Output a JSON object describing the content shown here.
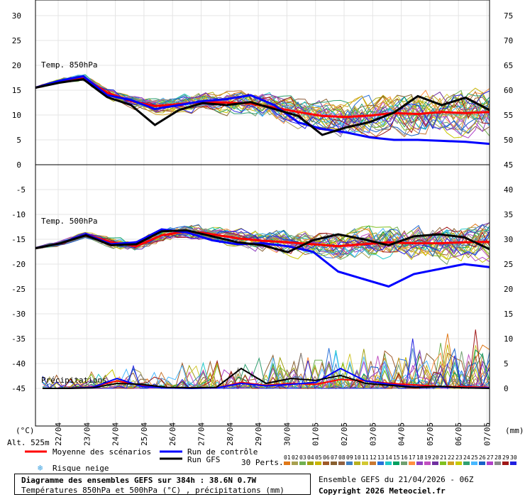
{
  "chart_data": {
    "type": "line",
    "title": "Diagramme des ensembles GEFS sur 384h : 38.6N 0.7W",
    "subtitle": "Températures 850hPa et 500hPa (°C) , précipitations (mm)",
    "x_dates": [
      "22/04",
      "23/04",
      "24/04",
      "25/04",
      "26/04",
      "27/04",
      "28/04",
      "29/04",
      "30/04",
      "01/05",
      "02/05",
      "03/05",
      "04/05",
      "05/05",
      "06/05",
      "07/05"
    ],
    "top_panel": {
      "label": "Temp. 850hPa",
      "left_ticks": [
        "30",
        "25",
        "20",
        "15",
        "10",
        "5",
        "0"
      ],
      "right_ticks": [
        "75",
        "70",
        "65",
        "60",
        "55",
        "50"
      ],
      "ylim": [
        0,
        30
      ],
      "series": [
        {
          "name": "Moyenne des scénarios",
          "color": "#ff0000",
          "values": [
            15.5,
            16.8,
            17.6,
            14.5,
            12.8,
            11.8,
            12.2,
            12.6,
            12.5,
            12.3,
            11.5,
            10.6,
            9.8,
            9.6,
            9.9,
            10.4,
            10.2,
            10.6,
            10.4,
            10.6
          ]
        },
        {
          "name": "Run de contrôle",
          "color": "#0000ff",
          "values": [
            15.5,
            16.9,
            17.8,
            14.0,
            13.0,
            11.2,
            12.0,
            12.8,
            13.2,
            14.0,
            12.0,
            8.5,
            7.2,
            6.5,
            5.5,
            5.0,
            5.0,
            4.8,
            4.6,
            4.2
          ]
        },
        {
          "name": "Run GFS",
          "color": "#000000",
          "values": [
            15.5,
            16.5,
            17.2,
            13.6,
            12.0,
            8.0,
            11.0,
            12.4,
            12.0,
            12.6,
            11.2,
            9.8,
            6.0,
            7.5,
            8.6,
            10.5,
            13.8,
            12.0,
            13.5,
            11.0
          ]
        }
      ]
    },
    "bottom_panel": {
      "temp_label": "Temp. 500hPa",
      "precip_label": "Précipitations",
      "left_ticks": [
        "-5",
        "-10",
        "-15",
        "-20",
        "-25",
        "-30",
        "-35",
        "-40",
        "-45"
      ],
      "right_ticks": [
        "45",
        "40",
        "35",
        "30",
        "25",
        "20",
        "15",
        "10",
        "5",
        "0"
      ],
      "temp_ylim": [
        -45,
        0
      ],
      "precip_ylim": [
        0,
        45
      ],
      "temp_series": [
        {
          "name": "Moyenne des scénarios",
          "color": "#ff0000",
          "values": [
            -16.8,
            -15.8,
            -14.0,
            -15.6,
            -16.4,
            -14.2,
            -13.4,
            -14.0,
            -14.8,
            -15.3,
            -15.6,
            -16.0,
            -16.4,
            -16.0,
            -15.6,
            -15.8,
            -15.8,
            -15.6,
            -15.5
          ]
        },
        {
          "name": "Run de contrôle",
          "color": "#0000ff",
          "values": [
            -16.8,
            -15.8,
            -14.0,
            -16.0,
            -15.6,
            -13.0,
            -13.6,
            -15.2,
            -16.0,
            -15.8,
            -16.4,
            -17.5,
            -21.5,
            -23.0,
            -24.5,
            -22.0,
            -21.0,
            -20.0,
            -20.6
          ]
        },
        {
          "name": "Run GFS",
          "color": "#000000",
          "values": [
            -16.8,
            -15.8,
            -14.2,
            -16.2,
            -16.0,
            -13.4,
            -13.2,
            -14.4,
            -15.6,
            -16.2,
            -17.6,
            -15.2,
            -14.0,
            -15.0,
            -16.2,
            -14.4,
            -14.0,
            -14.6,
            -17.0
          ]
        }
      ],
      "precip_series": [
        {
          "name": "Moyenne des scénarios",
          "color": "#ff0000",
          "values": [
            0,
            0,
            0.3,
            1.5,
            0.6,
            0.2,
            0.1,
            0.1,
            1.2,
            0.6,
            1.0,
            0.8,
            1.8,
            1.5,
            1.0,
            0.7,
            0.4,
            0.3,
            0.2
          ]
        },
        {
          "name": "Run de contrôle",
          "color": "#0000ff",
          "values": [
            0,
            0,
            0.2,
            2.0,
            0.4,
            0.1,
            0,
            0.1,
            1.0,
            0.5,
            0.8,
            1.2,
            4.0,
            1.5,
            0.8,
            0.3,
            0.3,
            0.1,
            0.1
          ]
        },
        {
          "name": "Run GFS",
          "color": "#000000",
          "values": [
            0,
            0,
            0.1,
            1.0,
            0.8,
            0.2,
            0.1,
            0.2,
            4.0,
            1.0,
            2.0,
            1.6,
            2.6,
            1.0,
            0.6,
            0.2,
            0.4,
            0.1,
            0
          ]
        }
      ]
    },
    "units_left": "(°C)",
    "units_right": "(mm)",
    "altitude": "Alt. 525m",
    "legend": {
      "mean": "Moyenne des scénarios",
      "control": "Run de contrôle",
      "gfs": "Run GFS",
      "snow": "Risque neige",
      "perts": "30 Perts.",
      "pert_labels": [
        "01",
        "02",
        "03",
        "04",
        "05",
        "06",
        "07",
        "08",
        "09",
        "10",
        "11",
        "12",
        "13",
        "14",
        "15",
        "16",
        "17",
        "18",
        "19",
        "20",
        "21",
        "22",
        "23",
        "24",
        "25",
        "26",
        "27",
        "28",
        "29",
        "30"
      ],
      "pert_colors": [
        "#e07818",
        "#a8a050",
        "#70b050",
        "#a0a010",
        "#c8b400",
        "#a05a28",
        "#886030",
        "#906040",
        "#4080c0",
        "#b8b020",
        "#d2c832",
        "#c87832",
        "#2870d8",
        "#20c8c8",
        "#00a060",
        "#70a070",
        "#ff9040",
        "#9040c0",
        "#c050c0",
        "#7030a0",
        "#80c020",
        "#d0a020",
        "#c8c800",
        "#30a070",
        "#48b8ff",
        "#1860c8",
        "#b040c8",
        "#888888",
        "#a01818",
        "#2020e0"
      ]
    }
  },
  "footer": {
    "line1": "Diagramme des ensembles GEFS sur 384h : 38.6N 0.7W",
    "line2": "Températures 850hPa et 500hPa (°C) , précipitations (mm)",
    "ensemble": "Ensemble GEFS du 21/04/2026 - 06Z",
    "copyright": "Copyright 2026 Meteociel.fr"
  }
}
